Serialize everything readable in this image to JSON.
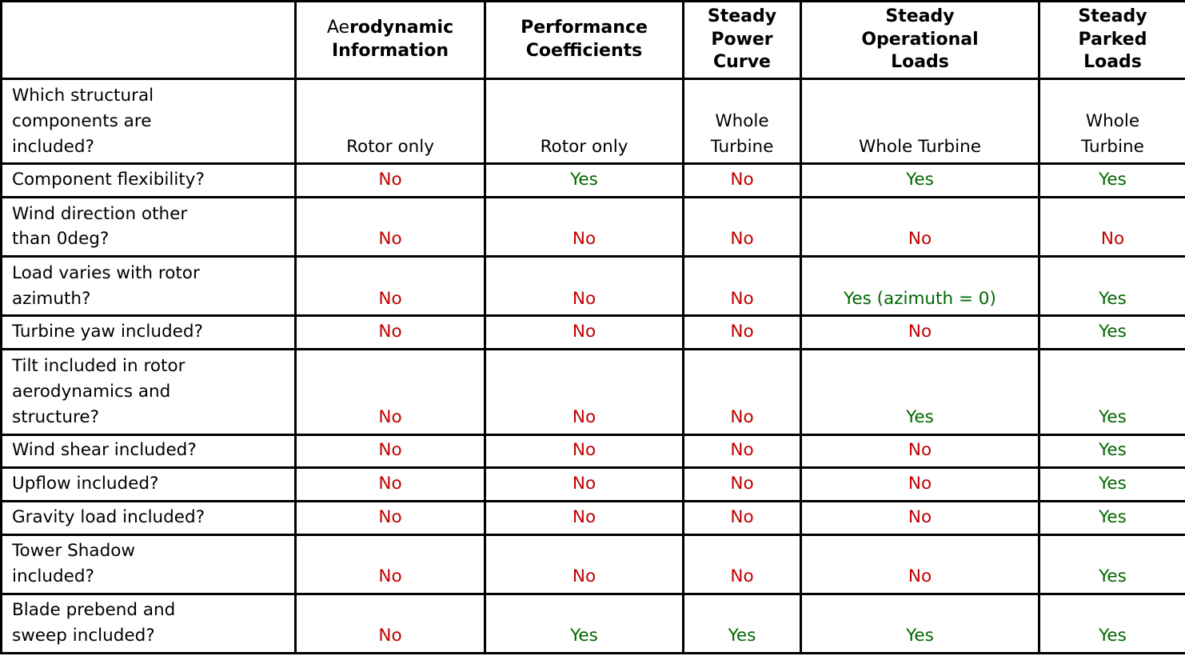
{
  "colors": {
    "yes_text": "#006600",
    "no_text": "#c00000",
    "border": "#000000",
    "body_text": "#000000",
    "background": "#ffffff"
  },
  "header": {
    "corner_label": "",
    "columns": [
      {
        "pre": "Ae",
        "label": "rodynamic\nInformation"
      },
      {
        "pre": "",
        "label": "Performance\nCoefficients"
      },
      {
        "pre": "",
        "label": "Steady\nPower\nCurve"
      },
      {
        "pre": "",
        "label": "Steady\nOperational\nLoads"
      },
      {
        "pre": "",
        "label": "Steady\nParked\nLoads"
      }
    ]
  },
  "rows": [
    {
      "label": "Which structural\ncomponents are\nincluded?",
      "values": [
        "Rotor only",
        "Rotor only",
        "Whole\nTurbine",
        "Whole Turbine",
        "Whole\nTurbine"
      ]
    },
    {
      "label": "Component flexibility?",
      "values": [
        "No",
        "Yes",
        "No",
        "Yes",
        "Yes"
      ]
    },
    {
      "label": "Wind direction other\nthan 0deg?",
      "values": [
        "No",
        "No",
        "No",
        "No",
        "No"
      ]
    },
    {
      "label": "Load varies with rotor\nazimuth?",
      "values": [
        "No",
        "No",
        "No",
        "Yes (azimuth = 0)",
        "Yes"
      ]
    },
    {
      "label": "Turbine yaw included?",
      "values": [
        "No",
        "No",
        "No",
        "No",
        "Yes"
      ]
    },
    {
      "label": "Tilt included in rotor\naerodynamics and\nstructure?",
      "values": [
        "No",
        "No",
        "No",
        "Yes",
        "Yes"
      ]
    },
    {
      "label": "Wind shear included?",
      "values": [
        "No",
        "No",
        "No",
        "No",
        "Yes"
      ]
    },
    {
      "label": "Upflow included?",
      "values": [
        "No",
        "No",
        "No",
        "No",
        "Yes"
      ]
    },
    {
      "label": "Gravity load included?",
      "values": [
        "No",
        "No",
        "No",
        "No",
        "Yes"
      ]
    },
    {
      "label": "Tower Shadow\nincluded?",
      "values": [
        "No",
        "No",
        "No",
        "No",
        "Yes"
      ]
    },
    {
      "label": "Blade prebend and\nsweep included?",
      "values": [
        "No",
        "Yes",
        "Yes",
        "Yes",
        "Yes"
      ]
    }
  ]
}
